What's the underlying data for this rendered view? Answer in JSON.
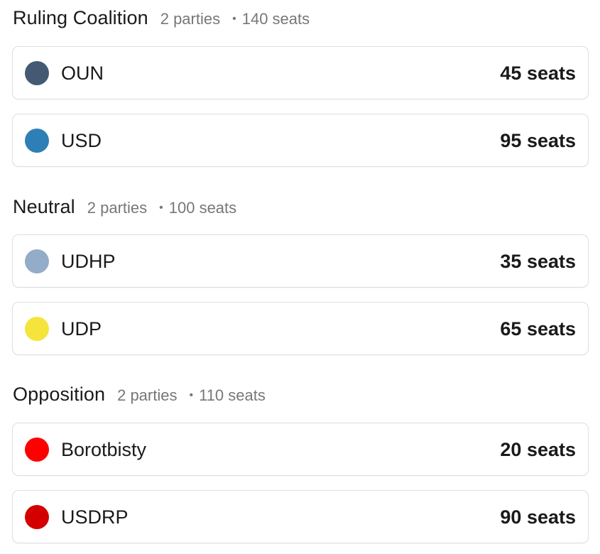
{
  "groups": [
    {
      "title": "Ruling Coalition",
      "count": "2 parties",
      "separator": "•",
      "seats": "140 seats",
      "parties": [
        {
          "name": "OUN",
          "seats": "45 seats",
          "color": "#435a72"
        },
        {
          "name": "USD",
          "seats": "95 seats",
          "color": "#2e7fb5"
        }
      ]
    },
    {
      "title": "Neutral",
      "count": "2 parties",
      "separator": "•",
      "seats": "100 seats",
      "parties": [
        {
          "name": "UDHP",
          "seats": "35 seats",
          "color": "#93acc8"
        },
        {
          "name": "UDP",
          "seats": "65 seats",
          "color": "#f5e43c"
        }
      ]
    },
    {
      "title": "Opposition",
      "count": "2 parties",
      "separator": "•",
      "seats": "110 seats",
      "parties": [
        {
          "name": "Borotbisty",
          "seats": "20 seats",
          "color": "#ff0000"
        },
        {
          "name": "USDRP",
          "seats": "90 seats",
          "color": "#d40000"
        }
      ]
    }
  ]
}
